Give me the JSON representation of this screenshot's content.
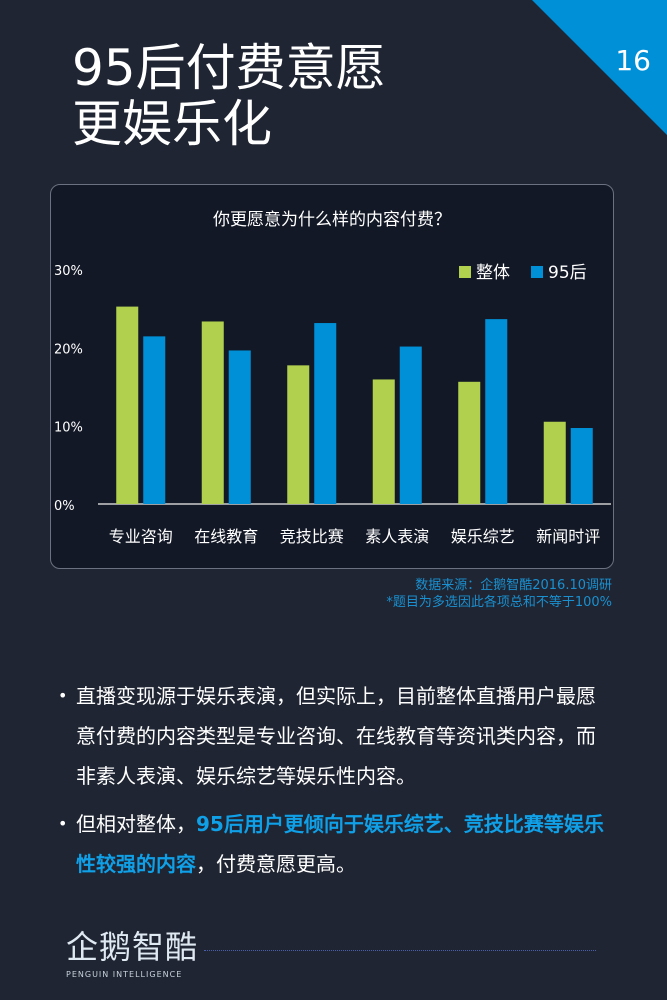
{
  "page": {
    "title_lines": [
      "95后付费意愿",
      "更娱乐化"
    ],
    "page_number": "16",
    "accent_color": "#0090d8"
  },
  "chart_data": {
    "type": "bar",
    "title": "你更愿意为什么样的内容付费？",
    "categories": [
      "专业咨询",
      "在线教育",
      "竞技比赛",
      "素人表演",
      "娱乐综艺",
      "新闻时评"
    ],
    "series": [
      {
        "name": "整体",
        "color": "#b1d14e",
        "values": [
          25.2,
          23.3,
          17.7,
          15.9,
          15.6,
          10.5
        ]
      },
      {
        "name": "95后",
        "color": "#0090d8",
        "values": [
          21.4,
          19.6,
          23.1,
          20.1,
          23.6,
          9.7
        ]
      }
    ],
    "ylim": [
      0,
      30
    ],
    "yticks": [
      "0%",
      "10%",
      "20%",
      "30%"
    ],
    "ytick_values": [
      0,
      10,
      20,
      30
    ],
    "legend": "top-right",
    "grid": false
  },
  "source": {
    "line1": "数据来源：企鹅智酷2016.10调研",
    "line2": "*题目为多选因此各项总和不等于100%"
  },
  "bullets": {
    "b1": "直播变现源于娱乐表演，但实际上，目前整体直播用户最愿意付费的内容类型是专业咨询、在线教育等资讯类内容，而非素人表演、娱乐综艺等娱乐性内容。",
    "b2_pre": "但相对整体，",
    "b2_highlight": "95后用户更倾向于娱乐综艺、竞技比赛等娱乐性较强的内容",
    "b2_post": "，付费意愿更高。"
  },
  "logo": {
    "cn": "企鹅智酷",
    "en": "PENGUIN INTELLIGENCE"
  }
}
